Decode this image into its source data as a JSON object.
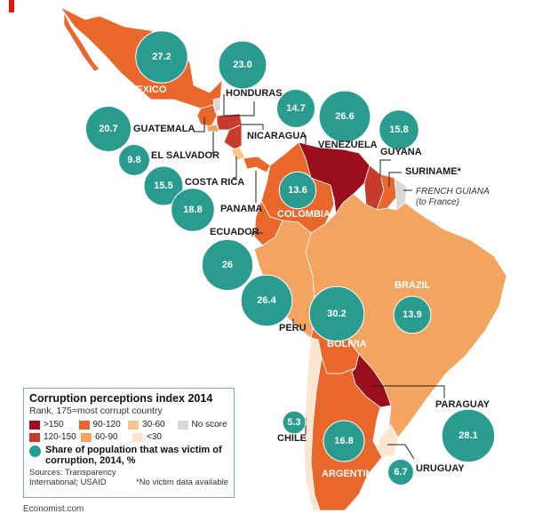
{
  "legend": {
    "title": "Corruption perceptions index 2014",
    "subtitle": "Rank, 175=most corrupt country",
    "classes": [
      {
        "label": ">150",
        "color": "#9a0e1e"
      },
      {
        "label": "90-120",
        "color": "#e9672a"
      },
      {
        "label": "30-60",
        "color": "#f9c58a"
      },
      {
        "label": "No score",
        "color": "#d7d7d7"
      },
      {
        "label": "120-150",
        "color": "#c63b2b"
      },
      {
        "label": "60-90",
        "color": "#f4a461"
      },
      {
        "label": "<30",
        "color": "#fde6cf"
      }
    ],
    "share_label": "Share of population that was victim of corruption, 2014, %",
    "share_color": "#2a9c8f",
    "sources": "Sources: Transparency International; USAID",
    "no_data_note": "*No victim data available"
  },
  "credit": "Economist.com",
  "countries": [
    {
      "name": "MEXICO",
      "rank_class": "90-120",
      "victim_pct": "27.2"
    },
    {
      "name": "HONDURAS",
      "rank_class": "120-150",
      "victim_pct": "23.0"
    },
    {
      "name": "GUATEMALA",
      "rank_class": "90-120",
      "victim_pct": "20.7"
    },
    {
      "name": "EL SALVADOR",
      "rank_class": "60-90",
      "victim_pct": "9.8"
    },
    {
      "name": "NICARAGUA",
      "rank_class": "120-150",
      "victim_pct": "14.7"
    },
    {
      "name": "COSTA RICA",
      "rank_class": "30-60",
      "victim_pct": "15.5"
    },
    {
      "name": "PANAMA",
      "rank_class": "90-120",
      "victim_pct": "18.8"
    },
    {
      "name": "VENEZUELA",
      "rank_class": ">150",
      "victim_pct": "26.6"
    },
    {
      "name": "GUYANA",
      "rank_class": "120-150",
      "victim_pct": "15.8"
    },
    {
      "name": "SURINAME*",
      "rank_class": "90-120",
      "victim_pct": ""
    },
    {
      "name": "FRENCH GUIANA",
      "rank_class": "No score",
      "victim_pct": "",
      "note": "(to France)"
    },
    {
      "name": "COLOMBIA",
      "rank_class": "90-120",
      "victim_pct": "13.6"
    },
    {
      "name": "ECUADOR",
      "rank_class": "90-120",
      "victim_pct": "26"
    },
    {
      "name": "PERU",
      "rank_class": "60-90",
      "victim_pct": "26.4"
    },
    {
      "name": "BRAZIL",
      "rank_class": "60-90",
      "victim_pct": "13.9"
    },
    {
      "name": "BOLIVIA",
      "rank_class": "90-120",
      "victim_pct": "30.2"
    },
    {
      "name": "PARAGUAY",
      "rank_class": ">150",
      "victim_pct": "28.1"
    },
    {
      "name": "CHILE",
      "rank_class": "<30",
      "victim_pct": "5.3"
    },
    {
      "name": "ARGENTINA",
      "rank_class": "90-120",
      "victim_pct": "16.8"
    },
    {
      "name": "URUGUAY",
      "rank_class": "<30",
      "victim_pct": "6.7"
    }
  ]
}
